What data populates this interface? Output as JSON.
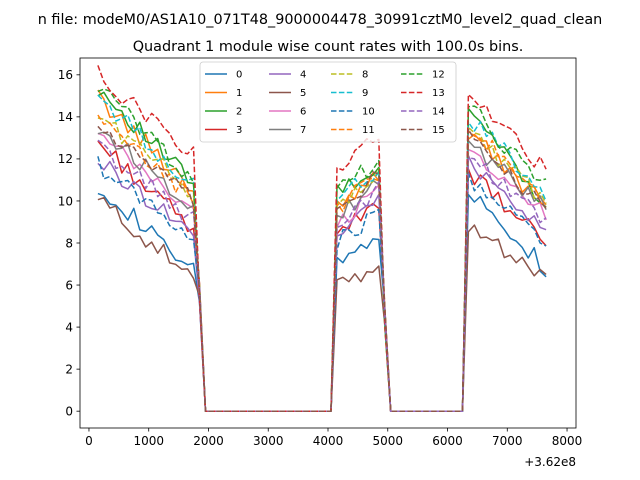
{
  "chart_data": {
    "type": "line",
    "suptitle": "n file: modeM0/AS1A10_071T48_9000004478_30991cztM0_level2_quad_clean",
    "title": "Quadrant 1 module wise count rates with 100.0s bins.",
    "xlabel": "",
    "ylabel": "",
    "x_offset_label": "+3.62e8",
    "xlim": [
      -150,
      8150
    ],
    "ylim": [
      -0.8,
      16.8
    ],
    "xticks": [
      0,
      1000,
      2000,
      3000,
      4000,
      5000,
      6000,
      7000,
      8000
    ],
    "yticks": [
      0,
      2,
      4,
      6,
      8,
      10,
      12,
      14,
      16
    ],
    "legend": {
      "position": "top-center",
      "columns": 4
    },
    "segments": [
      {
        "x_start": 150,
        "x_end": 1750,
        "step": 100
      },
      {
        "x_start": 4150,
        "x_end": 4850,
        "step": 100
      },
      {
        "x_start": 6350,
        "x_end": 7650,
        "step": 100
      }
    ],
    "zero_ranges": [
      [
        1950,
        4050
      ],
      [
        5050,
        6250
      ]
    ],
    "series": [
      {
        "name": "0",
        "style": "solid",
        "color": "#1f77b4",
        "s1": [
          10.8,
          6.6
        ],
        "s2": [
          7.2,
          8.2
        ],
        "s3": [
          10.6,
          6.8
        ]
      },
      {
        "name": "1",
        "style": "solid",
        "color": "#ff7f0e",
        "s1": [
          14.9,
          10.6
        ],
        "s2": [
          9.8,
          11.4
        ],
        "s3": [
          13.2,
          9.8
        ]
      },
      {
        "name": "2",
        "style": "solid",
        "color": "#2ca02c",
        "s1": [
          15.4,
          10.8
        ],
        "s2": [
          10.3,
          11.7
        ],
        "s3": [
          14.4,
          9.9
        ]
      },
      {
        "name": "3",
        "style": "solid",
        "color": "#d62728",
        "s1": [
          12.8,
          8.6
        ],
        "s2": [
          8.4,
          9.8
        ],
        "s3": [
          11.4,
          7.9
        ]
      },
      {
        "name": "4",
        "style": "solid",
        "color": "#9467bd",
        "s1": [
          11.9,
          8.5
        ],
        "s2": [
          8.6,
          10.2
        ],
        "s3": [
          12.0,
          8.6
        ]
      },
      {
        "name": "5",
        "style": "solid",
        "color": "#8c564b",
        "s1": [
          10.1,
          6.3
        ],
        "s2": [
          5.8,
          7.0
        ],
        "s3": [
          8.9,
          6.4
        ]
      },
      {
        "name": "6",
        "style": "solid",
        "color": "#e377c2",
        "s1": [
          13.1,
          9.5
        ],
        "s2": [
          8.9,
          10.6
        ],
        "s3": [
          12.6,
          9.3
        ]
      },
      {
        "name": "7",
        "style": "solid",
        "color": "#7f7f7f",
        "s1": [
          13.5,
          9.8
        ],
        "s2": [
          9.1,
          10.9
        ],
        "s3": [
          12.8,
          9.6
        ]
      },
      {
        "name": "8",
        "style": "dashed",
        "color": "#bcbd22",
        "s1": [
          14.1,
          10.4
        ],
        "s2": [
          9.6,
          11.1
        ],
        "s3": [
          13.4,
          10.0
        ]
      },
      {
        "name": "9",
        "style": "dashed",
        "color": "#17becf",
        "s1": [
          15.0,
          10.7
        ],
        "s2": [
          10.0,
          11.6
        ],
        "s3": [
          14.0,
          10.4
        ]
      },
      {
        "name": "10",
        "style": "dashed",
        "color": "#1f77b4",
        "s1": [
          11.7,
          8.3
        ],
        "s2": [
          8.0,
          9.4
        ],
        "s3": [
          11.1,
          8.0
        ]
      },
      {
        "name": "11",
        "style": "dashed",
        "color": "#ff7f0e",
        "s1": [
          13.8,
          10.1
        ],
        "s2": [
          9.6,
          11.3
        ],
        "s3": [
          13.6,
          9.8
        ]
      },
      {
        "name": "12",
        "style": "dashed",
        "color": "#2ca02c",
        "s1": [
          15.5,
          11.0
        ],
        "s2": [
          10.4,
          11.9
        ],
        "s3": [
          14.5,
          10.6
        ]
      },
      {
        "name": "13",
        "style": "dashed",
        "color": "#d62728",
        "s1": [
          16.0,
          12.2
        ],
        "s2": [
          11.3,
          13.0
        ],
        "s3": [
          15.0,
          11.4
        ]
      },
      {
        "name": "14",
        "style": "dashed",
        "color": "#9467bd",
        "s1": [
          12.6,
          9.1
        ],
        "s2": [
          8.8,
          10.5
        ],
        "s3": [
          12.3,
          9.0
        ]
      },
      {
        "name": "15",
        "style": "dashed",
        "color": "#8c564b",
        "s1": [
          13.6,
          10.0
        ],
        "s2": [
          9.4,
          11.2
        ],
        "s3": [
          13.1,
          9.5
        ]
      }
    ]
  }
}
